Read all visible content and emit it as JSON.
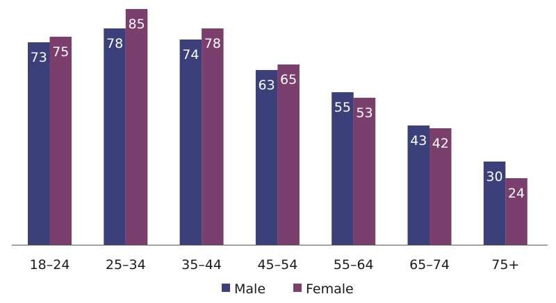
{
  "chart_data": {
    "type": "bar",
    "categories": [
      "18–24",
      "25–34",
      "35–44",
      "45–54",
      "55–64",
      "65–74",
      "75+"
    ],
    "series": [
      {
        "name": "Male",
        "color": "#3b3f7a",
        "values": [
          73,
          78,
          74,
          63,
          55,
          43,
          30
        ]
      },
      {
        "name": "Female",
        "color": "#7b3f6e",
        "values": [
          75,
          85,
          78,
          65,
          53,
          42,
          24
        ]
      }
    ],
    "title": "",
    "xlabel": "",
    "ylabel": "",
    "ylim": [
      0,
      85
    ],
    "grid": false,
    "legend": "bottom"
  }
}
